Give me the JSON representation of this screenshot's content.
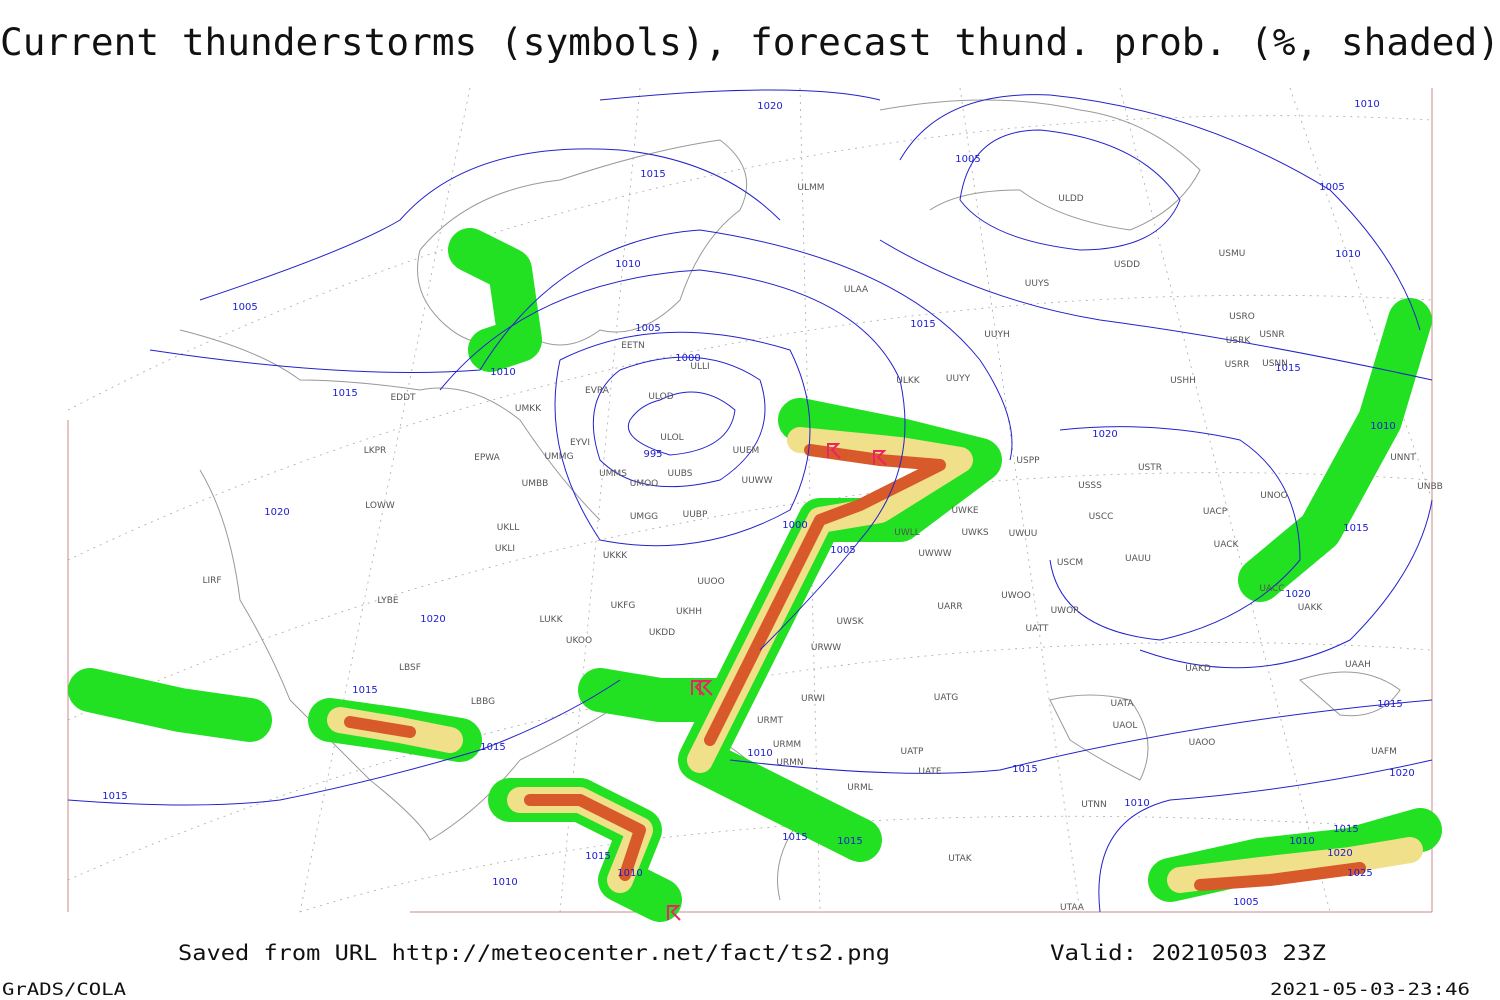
{
  "title": "Current thunderstorms (symbols), forecast thund. prob. (%, shaded)",
  "footer": {
    "source": "Saved from URL http://meteocenter.net/fact/ts2.png",
    "valid": "Valid: 20210503 23Z",
    "credit": "GrADS/COLA",
    "timestamp": "2021-05-03-23:46"
  },
  "isobar_labels": [
    1020,
    1015,
    1010,
    1005,
    1010,
    1015,
    1005,
    1000,
    995,
    1005,
    1005,
    1010,
    1010,
    1015,
    1015,
    1020,
    1010,
    1015,
    1020,
    1020,
    1020,
    1015,
    1015,
    1015,
    1000,
    1005,
    1010,
    1015,
    1015,
    1015,
    1010,
    1010,
    1015,
    1010,
    1015,
    1020,
    1015,
    1010,
    1020,
    1025,
    1005
  ],
  "stations": [
    "ULMM",
    "ULAA",
    "ULDD",
    "USDD",
    "UUYS",
    "USMU",
    "USRO",
    "USRK",
    "USNR",
    "USRR",
    "USNN",
    "UUYH",
    "ULKK",
    "UUYY",
    "USHH",
    "ULOD",
    "ULOL",
    "UUEM",
    "UUWW",
    "UUBS",
    "UMMS",
    "UMOO",
    "UMGG",
    "UUBP",
    "UKLL",
    "UKLI",
    "UKKK",
    "UUOO",
    "UKHH",
    "UKFG",
    "UKOO",
    "UKDD",
    "LUKK",
    "LYBE",
    "LOWW",
    "LKPR",
    "EPWA",
    "UMBB",
    "UMKK",
    "UMMG",
    "EVRA",
    "EETN",
    "EYVI",
    "EDDT",
    "LBSF",
    "LBBG",
    "LIRF",
    "USPP",
    "USTR",
    "USSS",
    "USCC",
    "UACP",
    "UNOO",
    "UNNT",
    "UNBB",
    "UACK",
    "USCM",
    "UAUU",
    "UWKE",
    "UWUU",
    "UWWW",
    "UWKS",
    "UWLL",
    "UARR",
    "UWOO",
    "UWOR",
    "UATT",
    "URWW",
    "UWSK",
    "UATG",
    "URWI",
    "URMT",
    "URMM",
    "URMN",
    "UATA",
    "UAOL",
    "UAOO",
    "UATP",
    "UATE",
    "URML",
    "UTNN",
    "UTAK",
    "UTAA",
    "UAKD",
    "UAKK",
    "UACC",
    "UAAH",
    "UAFM",
    "ULLI"
  ]
}
